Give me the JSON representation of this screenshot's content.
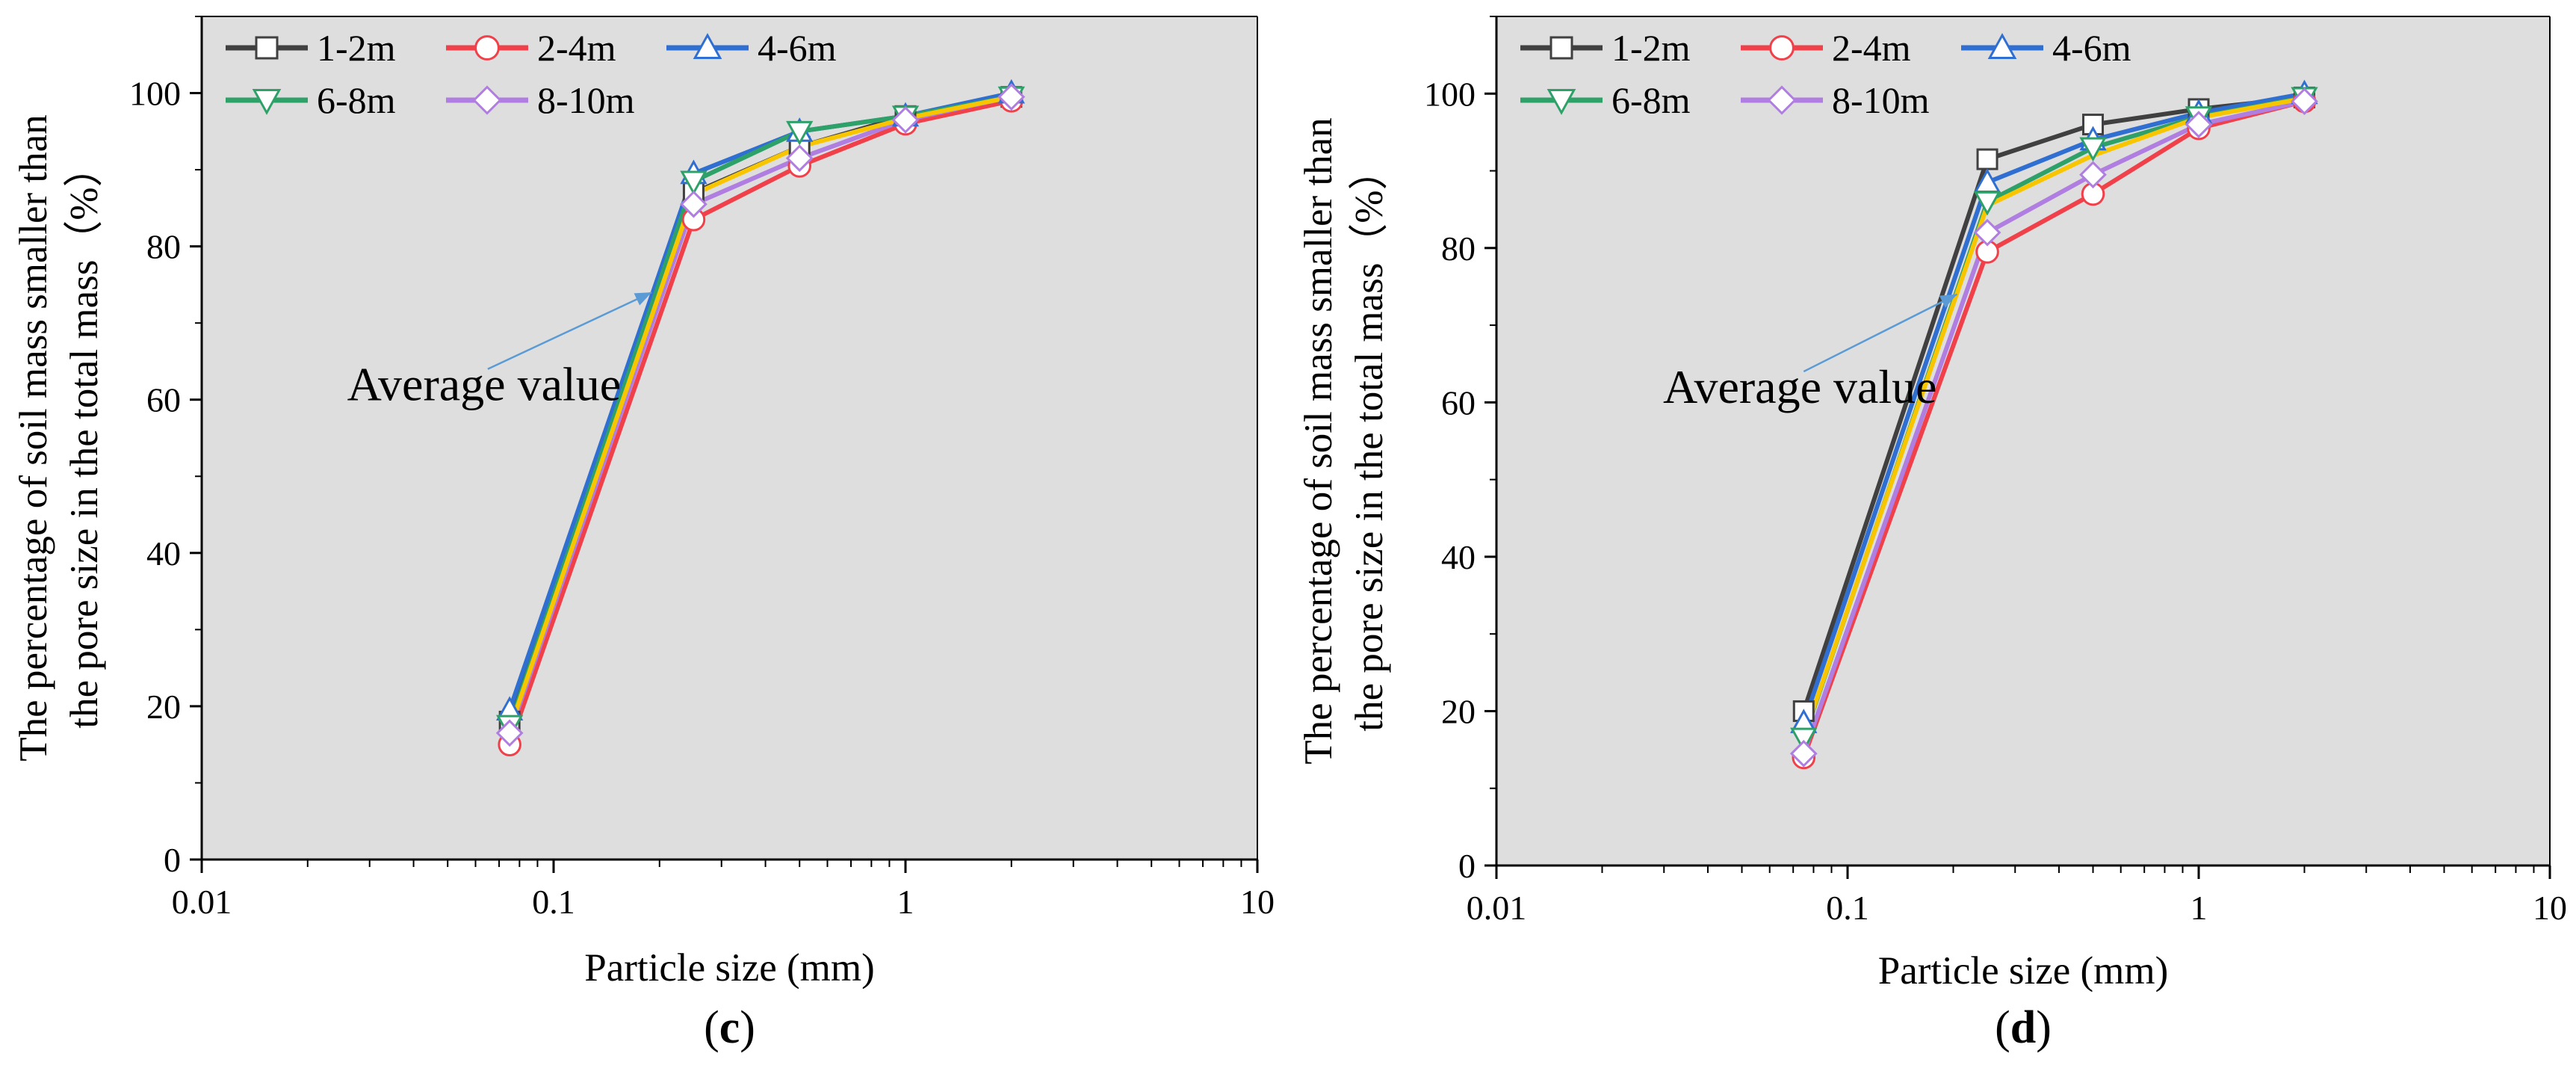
{
  "chart_data": [
    {
      "type": "line",
      "panel_label_open": "(",
      "panel_label_letter": "c",
      "panel_label_close": ")",
      "xscale": "log",
      "xlim": [
        0.01,
        10
      ],
      "ylim": [
        0,
        110
      ],
      "xlabel": "Particle size (mm)",
      "ylabel_line1": "The percentage of soil mass smaller than",
      "ylabel_line2": "the pore size in the total mass（%）",
      "x_ticks": [
        0.01,
        0.1,
        1,
        10
      ],
      "x_tick_labels": [
        "0.01",
        "0.1",
        "1",
        "10"
      ],
      "y_ticks": [
        0,
        20,
        40,
        60,
        80,
        100
      ],
      "y_tick_labels": [
        "0",
        "20",
        "40",
        "60",
        "80",
        "100"
      ],
      "x": [
        0.075,
        0.25,
        0.5,
        1,
        2
      ],
      "series": [
        {
          "name": "1-2m",
          "color": "#404040",
          "marker": "square",
          "values": [
            18,
            87,
            93,
            97,
            99.5
          ]
        },
        {
          "name": "2-4m",
          "color": "#f0414b",
          "marker": "circle",
          "values": [
            15,
            83.5,
            90.5,
            96,
            99
          ]
        },
        {
          "name": "4-6m",
          "color": "#2f6fd1",
          "marker": "triangle-up",
          "values": [
            19.5,
            89.5,
            95,
            97,
            100
          ]
        },
        {
          "name": "6-8m",
          "color": "#2ea169",
          "marker": "triangle-down",
          "values": [
            17.5,
            88.5,
            95,
            97,
            99.5
          ]
        },
        {
          "name": "8-10m",
          "color": "#b07de0",
          "marker": "diamond",
          "values": [
            16.5,
            85.5,
            91.5,
            96.5,
            99.5
          ]
        },
        {
          "name": "Average value",
          "color": "#f7c600",
          "marker": "none",
          "values": [
            17,
            86.8,
            93,
            96.7,
            99.5
          ]
        }
      ],
      "annotation": {
        "text": "Average value",
        "arrow_from": [
          0.065,
          64
        ],
        "arrow_to": [
          0.19,
          74
        ]
      }
    },
    {
      "type": "line",
      "panel_label_open": "(",
      "panel_label_letter": "d",
      "panel_label_close": ")",
      "xscale": "log",
      "xlim": [
        0.01,
        10
      ],
      "ylim": [
        0,
        110
      ],
      "xlabel": "Particle size (mm)",
      "ylabel_line1": "The percentage of soil mass smaller than",
      "ylabel_line2": "the pore size in the total mass（%）",
      "x_ticks": [
        0.01,
        0.1,
        1,
        10
      ],
      "x_tick_labels": [
        "0.01",
        "0.1",
        "1",
        "10"
      ],
      "y_ticks": [
        0,
        20,
        40,
        60,
        80,
        100
      ],
      "y_tick_labels": [
        "0",
        "20",
        "40",
        "60",
        "80",
        "100"
      ],
      "x": [
        0.075,
        0.25,
        0.5,
        1,
        2
      ],
      "series": [
        {
          "name": "1-2m",
          "color": "#404040",
          "marker": "square",
          "values": [
            20,
            91.5,
            96,
            98,
            99.5
          ]
        },
        {
          "name": "2-4m",
          "color": "#f0414b",
          "marker": "circle",
          "values": [
            14,
            79.5,
            87,
            95.5,
            99
          ]
        },
        {
          "name": "4-6m",
          "color": "#2f6fd1",
          "marker": "triangle-up",
          "values": [
            18.5,
            88.5,
            94,
            97.5,
            100
          ]
        },
        {
          "name": "6-8m",
          "color": "#2ea169",
          "marker": "triangle-down",
          "values": [
            16.5,
            86,
            93,
            97,
            99.5
          ]
        },
        {
          "name": "8-10m",
          "color": "#b07de0",
          "marker": "diamond",
          "values": [
            14.5,
            82,
            89.5,
            96,
            99
          ]
        },
        {
          "name": "Average value",
          "color": "#f7c600",
          "marker": "none",
          "values": [
            16.7,
            85.5,
            92,
            96.9,
            99.4
          ]
        }
      ],
      "annotation": {
        "text": "Average value",
        "arrow_from": [
          0.075,
          64
        ],
        "arrow_to": [
          0.205,
          74
        ]
      }
    }
  ]
}
